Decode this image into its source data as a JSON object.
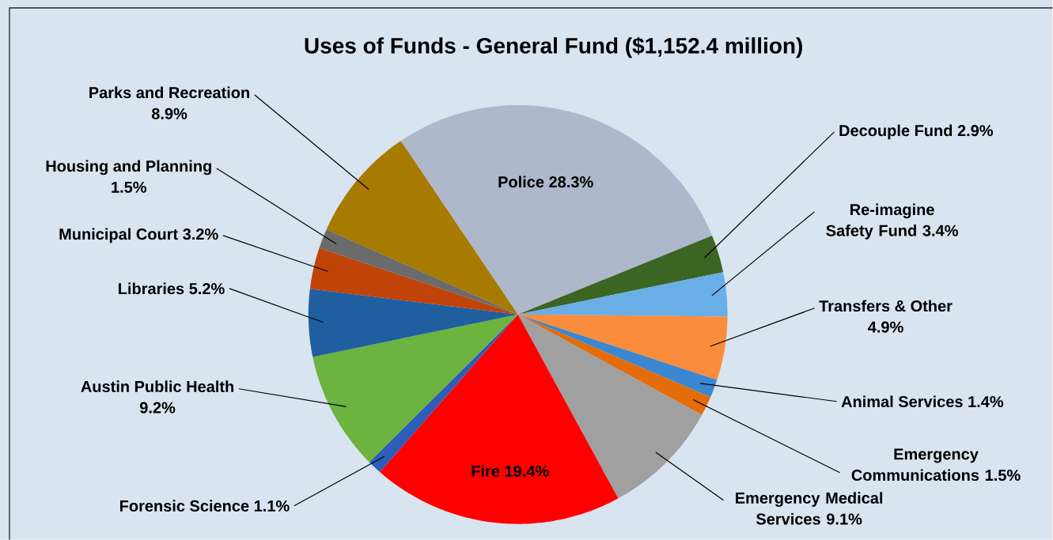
{
  "chart_data": {
    "type": "pie",
    "title": "Uses of Funds - General Fund ($1,152.4 million)",
    "categories": [
      "Police",
      "Decouple Fund",
      "Re-imagine Safety Fund",
      "Transfers & Other",
      "Animal Services",
      "Emergency Communications",
      "Emergency Medical Services",
      "Fire",
      "Forensic Science",
      "Austin Public Health",
      "Libraries",
      "Municipal Court",
      "Housing and Planning",
      "Parks and Recreation"
    ],
    "values": [
      28.3,
      2.9,
      3.4,
      4.9,
      1.4,
      1.5,
      9.1,
      19.4,
      1.1,
      9.2,
      5.2,
      3.2,
      1.5,
      8.9
    ],
    "value_labels": [
      "28.3%",
      "2.9%",
      "3.4%",
      "4.9%",
      "1.4%",
      "1.5%",
      "9.1%",
      "19.4%",
      "1.1%",
      "9.2%",
      "5.2%",
      "3.2%",
      "1.5%",
      "8.9%"
    ],
    "colors": [
      "#adb9ca",
      "#3b6522",
      "#6aaee8",
      "#fb8c3c",
      "#3a87d0",
      "#e46c0a",
      "#a0a0a0",
      "#ff0000",
      "#2e5db8",
      "#6cb33f",
      "#1f5fa0",
      "#c0440a",
      "#6b6b6b",
      "#a77a00"
    ]
  }
}
